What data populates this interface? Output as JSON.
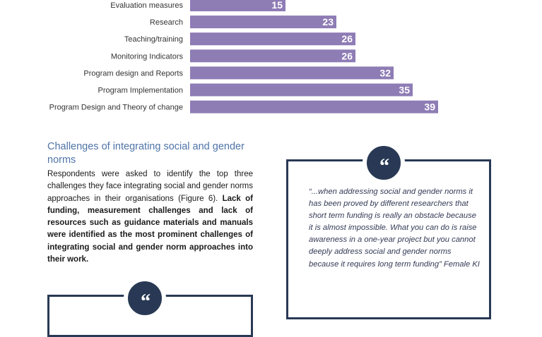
{
  "chart_data": {
    "type": "bar",
    "orientation": "horizontal",
    "categories": [
      "Evaluation measures",
      "Research",
      "Teaching/training",
      "Monitoring Indicators",
      "Program design and Reports",
      "Program Implementation",
      "Program Design and Theory of change"
    ],
    "values": [
      15,
      23,
      26,
      26,
      32,
      35,
      39
    ],
    "bar_color": "#8e7cb5",
    "value_label_color": "#ffffff",
    "grid": false,
    "legend": "none"
  },
  "section": {
    "heading": "Challenges of integrating social and gender norms",
    "para_1": "Respondents were asked to identify the top three challenges they face integrating social and gender norms approaches in their organisations (Figure 6). ",
    "para_bold": "Lack of funding, measurement challenges and lack of resources such as guidance materials and manuals were identified as the most prominent challenges of integrating social and gender norm approaches into their work."
  },
  "quote_right": {
    "icon": "quote-mark-icon",
    "mark": "“",
    "text": "“...when addressing social and gender norms it has been proved by different researchers that short term funding is really an obstacle because it is almost impossible. What you can do is raise awareness in a one-year project but you cannot deeply address social and gender norms because it requires long term funding” Female KI"
  },
  "quote_left": {
    "icon": "quote-mark-icon",
    "mark": "“"
  },
  "colors": {
    "accent_navy": "#293955",
    "heading_blue": "#4f74a8",
    "bar_purple": "#8e7cb5"
  }
}
